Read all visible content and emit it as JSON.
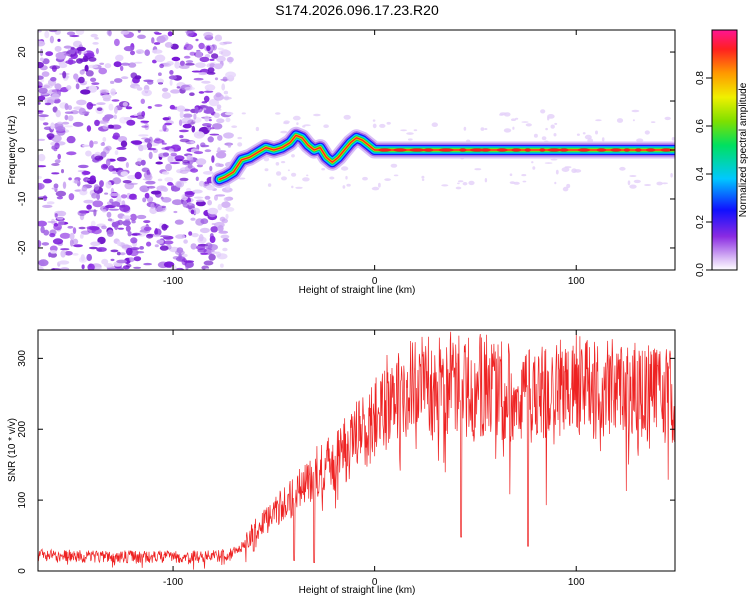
{
  "title": "S174.2026.096.17.23.R20",
  "chart_data": [
    {
      "type": "heatmap",
      "name": "spectrogram",
      "xlabel": "Height of straight line (km)",
      "ylabel": "Frequency (Hz)",
      "xlim": [
        -167,
        149
      ],
      "ylim": [
        -24.5,
        24.5
      ],
      "xticks": [
        -100,
        0,
        100
      ],
      "xtick_labels": [
        "-100",
        "0",
        "100"
      ],
      "yticks": [
        20,
        10,
        0,
        -10,
        -20
      ],
      "ytick_labels": [
        "20",
        "10",
        "0",
        "-10",
        "-20"
      ],
      "noise_region_x": [
        -167,
        -74
      ],
      "signal_track": {
        "x": [
          -77,
          -74,
          -70,
          -66,
          -62,
          -58,
          -54,
          -50,
          -46,
          -42,
          -39,
          -36,
          -33,
          -30,
          -27,
          -24,
          -21,
          -18,
          -15,
          -12,
          -9,
          -6,
          -3,
          0,
          5,
          10,
          20,
          40,
          60,
          80,
          100,
          120,
          149
        ],
        "freq": [
          -6,
          -5.5,
          -4.5,
          -2,
          -1.5,
          -0.5,
          0.5,
          0,
          0.5,
          1.5,
          3,
          2.5,
          1,
          0,
          0.5,
          -1.5,
          -2.5,
          -1.5,
          0,
          1.5,
          2.5,
          2,
          1,
          0,
          0,
          0,
          0,
          0,
          0,
          0,
          0,
          0,
          0
        ]
      },
      "colorbar": {
        "label": "Normalized spectral amplitude",
        "range": [
          0,
          1
        ],
        "ticks": [
          0.0,
          0.2,
          0.4,
          0.6,
          0.8
        ],
        "tick_labels": [
          "0.0",
          "0.2",
          "0.4",
          "0.6",
          "0.8"
        ]
      }
    },
    {
      "type": "line",
      "name": "snr",
      "xlabel": "Height of straight line (km)",
      "ylabel": "SNR (10 * v/v)",
      "xlim": [
        -167,
        149
      ],
      "ylim": [
        0,
        340
      ],
      "xticks": [
        -100,
        0,
        100
      ],
      "xtick_labels": [
        "-100",
        "0",
        "100"
      ],
      "yticks": [
        0,
        100,
        200,
        300
      ],
      "ytick_labels": [
        "0",
        "100",
        "200",
        "300"
      ],
      "color": "#ee2222",
      "envelope": {
        "x": [
          -167,
          -130,
          -90,
          -75,
          -68,
          -60,
          -55,
          -50,
          -45,
          -40,
          -35,
          -30,
          -25,
          -20,
          -15,
          -10,
          -5,
          0,
          5,
          10,
          20,
          30,
          40,
          45,
          55,
          60,
          70,
          80,
          100,
          120,
          149
        ],
        "mean": [
          22,
          20,
          20,
          22,
          28,
          55,
          70,
          80,
          95,
          105,
          120,
          135,
          145,
          155,
          170,
          185,
          200,
          215,
          235,
          250,
          260,
          265,
          265,
          262,
          262,
          258,
          250,
          245,
          262,
          255,
          248
        ]
      },
      "dips": [
        {
          "x": -60,
          "y": 28
        },
        {
          "x": -40,
          "y": 15
        },
        {
          "x": -30,
          "y": 12
        },
        {
          "x": 43,
          "y": 48
        },
        {
          "x": 76,
          "y": 35
        }
      ]
    }
  ]
}
